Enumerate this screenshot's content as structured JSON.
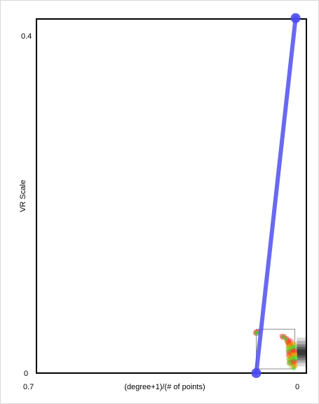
{
  "chart_data": {
    "type": "scatter",
    "title": "",
    "xlabel": "(degree+1)/(# of points)",
    "ylabel": "VR Scale",
    "x_axis_reversed": true,
    "xlim": [
      0.7,
      0
    ],
    "ylim": [
      0,
      0.42
    ],
    "x_tick_labels": [
      "0.7",
      "0"
    ],
    "y_tick_labels": [
      "0.4",
      "0"
    ],
    "grid": false,
    "legend": "none",
    "colors": {
      "line": "#5050ee",
      "endpoint": "#4a4af0",
      "red_points": "#ff2a2a",
      "green_points": "#33ee33",
      "orange_points": "#ff9900",
      "box": "#8c8c8c",
      "gray_bands": "#000000"
    },
    "line_segment": [
      {
        "x": 0.13,
        "y": 0.0
      },
      {
        "x": 0.028,
        "y": 0.421
      }
    ],
    "bounding_box": {
      "x_min": 0.03,
      "x_max": 0.13,
      "y_min": 0.005,
      "y_max": 0.052
    },
    "gray_bands": [
      {
        "y_min": 0.008,
        "y_max": 0.042,
        "opacity": 0.15
      },
      {
        "y_min": 0.012,
        "y_max": 0.038,
        "opacity": 0.2
      },
      {
        "y_min": 0.015,
        "y_max": 0.034,
        "opacity": 0.25
      },
      {
        "y_min": 0.018,
        "y_max": 0.031,
        "opacity": 0.3
      },
      {
        "y_min": 0.021,
        "y_max": 0.028,
        "opacity": 0.35
      }
    ],
    "series": [
      {
        "color": "#ff2a2a",
        "points": [
          [
            0.132,
            0.049
          ],
          [
            0.128,
            0.049
          ],
          [
            0.124,
            0.049
          ],
          [
            0.132,
            0.047
          ],
          [
            0.128,
            0.047
          ],
          [
            0.064,
            0.044
          ],
          [
            0.058,
            0.044
          ],
          [
            0.062,
            0.042
          ],
          [
            0.055,
            0.042
          ],
          [
            0.05,
            0.041
          ],
          [
            0.045,
            0.039
          ],
          [
            0.052,
            0.039
          ],
          [
            0.048,
            0.037
          ],
          [
            0.042,
            0.036
          ],
          [
            0.046,
            0.035
          ],
          [
            0.04,
            0.034
          ],
          [
            0.044,
            0.033
          ],
          [
            0.038,
            0.032
          ],
          [
            0.042,
            0.031
          ],
          [
            0.036,
            0.03
          ],
          [
            0.04,
            0.029
          ],
          [
            0.034,
            0.028
          ],
          [
            0.038,
            0.027
          ],
          [
            0.035,
            0.026
          ],
          [
            0.033,
            0.025
          ],
          [
            0.037,
            0.024
          ],
          [
            0.034,
            0.023
          ],
          [
            0.032,
            0.022
          ],
          [
            0.036,
            0.021
          ],
          [
            0.034,
            0.02
          ]
        ]
      },
      {
        "color": "#33ee33",
        "points": [
          [
            0.13,
            0.048
          ],
          [
            0.126,
            0.047
          ],
          [
            0.06,
            0.043
          ],
          [
            0.053,
            0.04
          ],
          [
            0.047,
            0.036
          ],
          [
            0.043,
            0.033
          ],
          [
            0.04,
            0.03
          ],
          [
            0.038,
            0.027
          ],
          [
            0.036,
            0.024
          ],
          [
            0.035,
            0.021
          ],
          [
            0.034,
            0.018
          ],
          [
            0.036,
            0.016
          ],
          [
            0.033,
            0.014
          ],
          [
            0.035,
            0.012
          ],
          [
            0.032,
            0.01
          ],
          [
            0.034,
            0.008
          ],
          [
            0.031,
            0.007
          ],
          [
            0.033,
            0.006
          ],
          [
            0.036,
            0.011
          ],
          [
            0.038,
            0.015
          ]
        ]
      },
      {
        "color": "#ff9900",
        "points": [
          [
            0.05,
            0.036
          ],
          [
            0.046,
            0.032
          ],
          [
            0.042,
            0.028
          ],
          [
            0.04,
            0.025
          ],
          [
            0.038,
            0.022
          ],
          [
            0.036,
            0.019
          ],
          [
            0.035,
            0.017
          ],
          [
            0.037,
            0.02
          ]
        ]
      }
    ]
  }
}
